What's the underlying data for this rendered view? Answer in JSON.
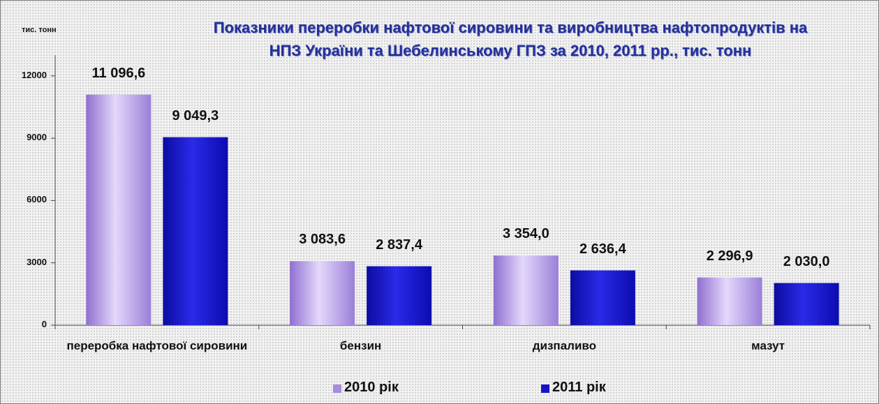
{
  "chart_data": {
    "type": "bar",
    "title": "Показники переробки нафтової сировини та виробництва нафтопродуктів на НПЗ України та Шебелинському ГПЗ за 2010, 2011 рр., тис. тонн",
    "y_axis_label": "тис. тонн",
    "categories": [
      "переробка нафтової сировини",
      "бензин",
      "дизпаливо",
      "мазут"
    ],
    "series": [
      {
        "name": "2010 рік",
        "color": "#a98be0",
        "values": [
          11096.6,
          3083.6,
          3354.0,
          2296.9
        ],
        "value_labels": [
          "11 096,6",
          "3 083,6",
          "3 354,0",
          "2 296,9"
        ]
      },
      {
        "name": "2011 рік",
        "color": "#1414c8",
        "values": [
          9049.3,
          2837.4,
          2636.4,
          2030.0
        ],
        "value_labels": [
          "9 049,3",
          "2 837,4",
          "2 636,4",
          "2 030,0"
        ]
      }
    ],
    "ylim": [
      0,
      13000
    ],
    "yticks": [
      0,
      3000,
      6000,
      9000,
      12000
    ],
    "legend": "bottom"
  }
}
